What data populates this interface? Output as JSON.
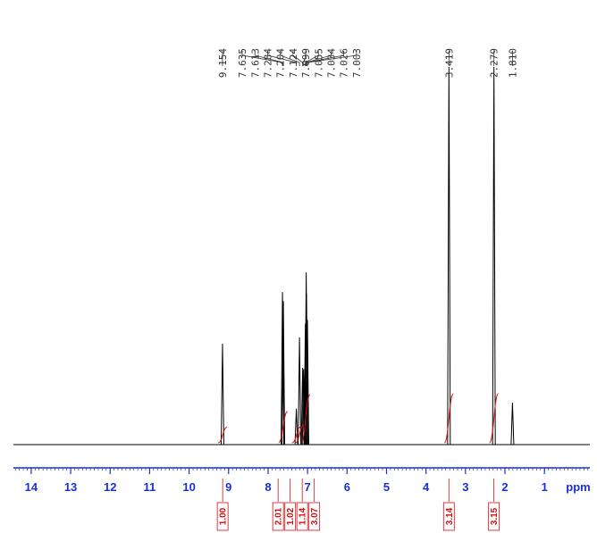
{
  "chart_data": {
    "type": "nmr",
    "xlabel": "ppm",
    "xlim": [
      14.45,
      -0.15
    ],
    "xticks": [
      14,
      13,
      12,
      11,
      10,
      9,
      8,
      7,
      6,
      5,
      4,
      3,
      2,
      1
    ],
    "minor_tick_step": 0.1,
    "ylim": [
      0,
      100
    ],
    "color": "#000000",
    "axis_color": "#1a2fd6",
    "integral_color": "#d01010",
    "peaks": {
      "ppm": [
        9.154,
        7.635,
        7.613,
        7.284,
        7.204,
        7.124,
        7.099,
        7.055,
        7.034,
        7.026,
        7.003,
        3.419,
        2.279,
        1.81
      ],
      "ppm_labels": [
        "9.154",
        "7.635",
        "7.613",
        "7.284",
        "7.204",
        "7.124",
        "7.099",
        "7.055",
        "7.034",
        "7.026",
        "7.003",
        "3.419",
        "2.279",
        "1.810"
      ],
      "values": [
        26.7,
        40.4,
        38,
        9.5,
        28.4,
        20.3,
        20,
        32,
        45.6,
        40,
        33,
        100,
        100,
        11.1
      ]
    },
    "integrals": {
      "ppm": [
        9.15,
        7.62,
        7.28,
        7.2,
        7.05,
        3.42,
        2.28
      ],
      "values": [
        1,
        2.01,
        1.02,
        1.14,
        3.07,
        3.14,
        3.15
      ],
      "value_labels": [
        "1.00",
        "2.01",
        "1.02",
        "1.14",
        "3.07",
        "3.14",
        "3.15"
      ]
    }
  }
}
